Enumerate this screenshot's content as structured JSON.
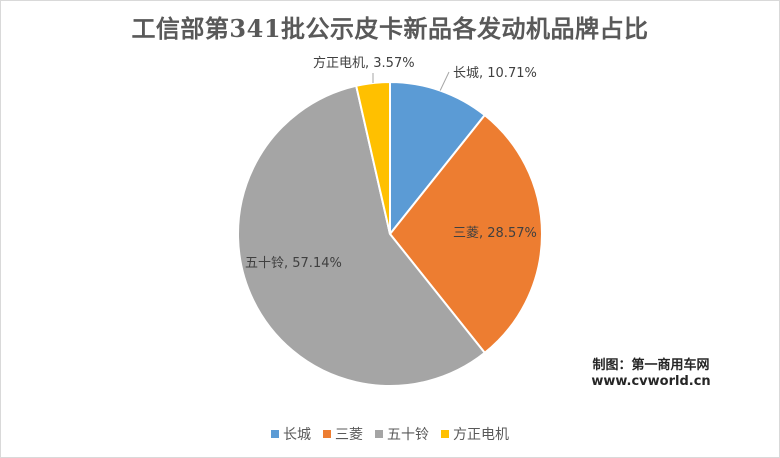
{
  "chart_data": {
    "type": "pie",
    "title": "工信部第341批公示皮卡新品各发动机品牌占比",
    "slices": [
      {
        "name": "长城",
        "value": 10.71,
        "label": "长城, 10.71%",
        "color": "#5B9BD5"
      },
      {
        "name": "三菱",
        "value": 28.57,
        "label": "三菱, 28.57%",
        "color": "#ED7D31"
      },
      {
        "name": "五十铃",
        "value": 57.14,
        "label": "五十铃, 57.14%",
        "color": "#A5A5A5"
      },
      {
        "name": "方正电机",
        "value": 3.57,
        "label": "方正电机, 3.57%",
        "color": "#FFC000"
      }
    ],
    "legend_position": "bottom"
  },
  "credit": {
    "line1": "制图：第一商用车网",
    "line2": "www.cvworld.cn"
  }
}
